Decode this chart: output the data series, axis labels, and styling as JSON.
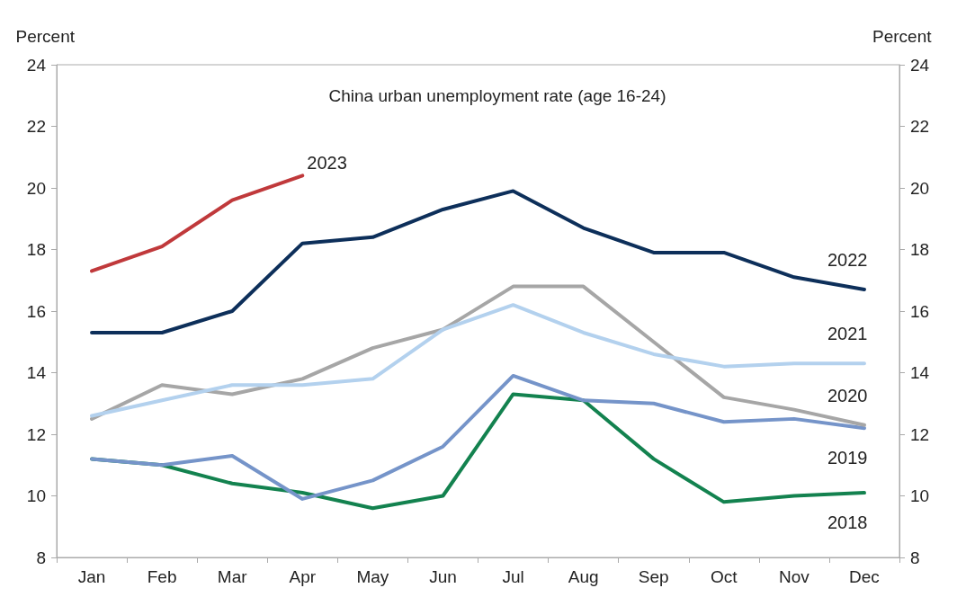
{
  "chart_data": {
    "type": "line",
    "title": "China urban unemployment rate (age 16-24)",
    "ylabel": "Percent",
    "y2label": "Percent",
    "categories": [
      "Jan",
      "Feb",
      "Mar",
      "Apr",
      "May",
      "Jun",
      "Jul",
      "Aug",
      "Sep",
      "Oct",
      "Nov",
      "Dec"
    ],
    "series": [
      {
        "name": "2023",
        "color": "#c0393b",
        "values": [
          17.3,
          18.1,
          19.6,
          20.4,
          null,
          null,
          null,
          null,
          null,
          null,
          null,
          null
        ]
      },
      {
        "name": "2022",
        "color": "#0d2f5a",
        "values": [
          15.3,
          15.3,
          16.0,
          18.2,
          18.4,
          19.3,
          19.9,
          18.7,
          17.9,
          17.9,
          17.1,
          16.7
        ]
      },
      {
        "name": "2021",
        "color": "#b3d1ee",
        "values": [
          12.6,
          13.1,
          13.6,
          13.6,
          13.8,
          15.4,
          16.2,
          15.3,
          14.6,
          14.2,
          14.3,
          14.3
        ]
      },
      {
        "name": "2020",
        "color": "#a6a6a6",
        "values": [
          12.5,
          13.6,
          13.3,
          13.8,
          14.8,
          15.4,
          16.8,
          16.8,
          15.0,
          13.2,
          12.8,
          12.3
        ]
      },
      {
        "name": "2019",
        "color": "#7594c9",
        "values": [
          11.2,
          11.0,
          11.3,
          9.9,
          10.5,
          11.6,
          13.9,
          13.1,
          13.0,
          12.4,
          12.5,
          12.2
        ]
      },
      {
        "name": "2018",
        "color": "#13824f",
        "values": [
          11.2,
          11.0,
          10.4,
          10.1,
          9.6,
          10.0,
          13.3,
          13.1,
          11.2,
          9.8,
          10.0,
          10.1
        ]
      }
    ],
    "ylim": [
      8,
      24
    ],
    "yticks": [
      8,
      10,
      12,
      14,
      16,
      18,
      20,
      22,
      24
    ],
    "y2lim": [
      8,
      24
    ],
    "y2ticks": [
      8,
      10,
      12,
      14,
      16,
      18,
      20,
      22,
      24
    ],
    "grid": false,
    "legend": false,
    "marker": "none",
    "line_style": "solid"
  }
}
